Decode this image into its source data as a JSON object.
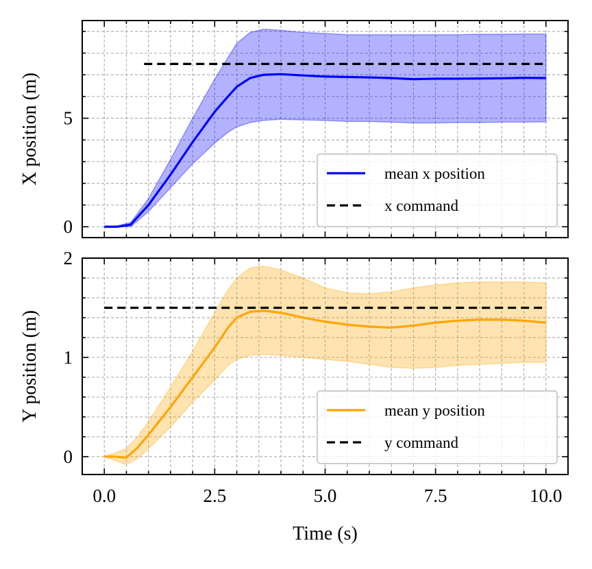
{
  "chart_data": [
    {
      "type": "line",
      "ylabel": "X position (m)",
      "xlabel": "",
      "xlim": [
        -0.5,
        10.5
      ],
      "ylim": [
        -0.5,
        9.5
      ],
      "xticks": [
        0.0,
        2.5,
        5.0,
        7.5,
        10.0
      ],
      "xtick_labels": [
        "",
        "",
        "",
        "",
        ""
      ],
      "yticks": [
        0,
        5
      ],
      "ytick_labels": [
        "0",
        "5"
      ],
      "grid": true,
      "legend_position": "bottom-right",
      "colors": {
        "mean": "#0000ff",
        "band": "#0000ff",
        "command": "#000000"
      },
      "series": [
        {
          "name": "mean x position",
          "style": "solid",
          "x": [
            0.0,
            0.3,
            0.6,
            1.0,
            1.5,
            2.0,
            2.5,
            2.8,
            3.0,
            3.3,
            3.6,
            4.0,
            4.5,
            5.0,
            5.5,
            6.0,
            6.5,
            7.0,
            7.5,
            8.0,
            8.5,
            9.0,
            9.5,
            10.0
          ],
          "y": [
            0.0,
            0.0,
            0.1,
            1.0,
            2.4,
            3.9,
            5.3,
            6.0,
            6.45,
            6.85,
            7.0,
            7.03,
            6.97,
            6.92,
            6.9,
            6.88,
            6.85,
            6.8,
            6.82,
            6.82,
            6.83,
            6.84,
            6.86,
            6.85
          ]
        },
        {
          "name": "x command",
          "style": "dashed",
          "x": [
            0.9,
            10.0
          ],
          "y": [
            7.5,
            7.5
          ]
        }
      ],
      "bands": [
        {
          "x": [
            0.0,
            0.3,
            0.6,
            1.0,
            1.5,
            2.0,
            2.5,
            2.8,
            3.0,
            3.3,
            3.6,
            4.0,
            4.5,
            5.0,
            5.5,
            6.0,
            6.5,
            7.0,
            7.5,
            8.0,
            8.5,
            9.0,
            9.5,
            10.0
          ],
          "upper": [
            0.0,
            0.05,
            0.2,
            1.3,
            3.1,
            5.0,
            6.8,
            7.8,
            8.45,
            8.95,
            9.1,
            9.05,
            8.95,
            8.9,
            8.85,
            8.85,
            8.85,
            8.85,
            8.85,
            8.85,
            8.87,
            8.87,
            8.88,
            8.88
          ],
          "lower": [
            0.0,
            0.0,
            0.0,
            0.7,
            1.8,
            2.9,
            3.85,
            4.35,
            4.6,
            4.8,
            4.9,
            4.95,
            4.92,
            4.9,
            4.85,
            4.85,
            4.82,
            4.78,
            4.78,
            4.8,
            4.8,
            4.82,
            4.82,
            4.83
          ]
        }
      ]
    },
    {
      "type": "line",
      "ylabel": "Y position (m)",
      "xlabel": "Time (s)",
      "xlim": [
        -0.5,
        10.5
      ],
      "ylim": [
        -0.18,
        2.0
      ],
      "xticks": [
        0.0,
        2.5,
        5.0,
        7.5,
        10.0
      ],
      "xtick_labels": [
        "0.0",
        "2.5",
        "5.0",
        "7.5",
        "10.0"
      ],
      "yticks": [
        0,
        1,
        2
      ],
      "ytick_labels": [
        "0",
        "1",
        "2"
      ],
      "grid": true,
      "legend_position": "bottom-right",
      "colors": {
        "mean": "#ffa500",
        "band": "#ffa500",
        "command": "#000000"
      },
      "series": [
        {
          "name": "mean y position",
          "style": "solid",
          "x": [
            0.0,
            0.25,
            0.5,
            0.75,
            1.0,
            1.5,
            2.0,
            2.5,
            2.8,
            3.0,
            3.3,
            3.6,
            4.0,
            4.5,
            5.0,
            5.5,
            6.0,
            6.5,
            7.0,
            7.5,
            8.0,
            8.5,
            9.0,
            9.5,
            10.0
          ],
          "y": [
            0.0,
            0.0,
            -0.01,
            0.09,
            0.22,
            0.5,
            0.8,
            1.1,
            1.3,
            1.4,
            1.46,
            1.47,
            1.45,
            1.4,
            1.36,
            1.33,
            1.31,
            1.3,
            1.32,
            1.35,
            1.37,
            1.38,
            1.38,
            1.37,
            1.35
          ]
        },
        {
          "name": "y command",
          "style": "dashed",
          "x": [
            0.0,
            10.0
          ],
          "y": [
            1.5,
            1.5
          ]
        }
      ],
      "bands": [
        {
          "x": [
            0.0,
            0.25,
            0.5,
            0.75,
            1.0,
            1.5,
            2.0,
            2.5,
            2.8,
            3.0,
            3.3,
            3.6,
            4.0,
            4.5,
            5.0,
            5.5,
            6.0,
            6.5,
            7.0,
            7.5,
            8.0,
            8.5,
            9.0,
            9.5,
            10.0
          ],
          "upper": [
            0.0,
            0.04,
            0.08,
            0.2,
            0.35,
            0.7,
            1.06,
            1.45,
            1.68,
            1.8,
            1.9,
            1.92,
            1.88,
            1.8,
            1.7,
            1.65,
            1.64,
            1.66,
            1.7,
            1.73,
            1.75,
            1.76,
            1.76,
            1.76,
            1.75
          ],
          "lower": [
            0.0,
            -0.04,
            -0.08,
            -0.02,
            0.08,
            0.3,
            0.55,
            0.77,
            0.92,
            0.98,
            1.02,
            1.03,
            1.02,
            1.0,
            0.98,
            0.96,
            0.93,
            0.9,
            0.89,
            0.9,
            0.92,
            0.93,
            0.94,
            0.95,
            0.95
          ]
        }
      ]
    }
  ]
}
